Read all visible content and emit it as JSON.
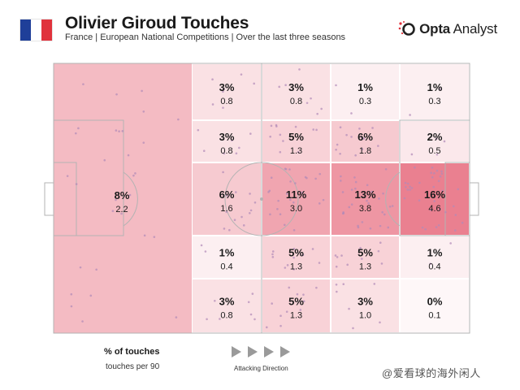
{
  "header": {
    "title": "Olivier Giroud Touches",
    "subtitle": "France | European National Competitions | Over the last three seasons",
    "flag_colors": [
      "#1f3f99",
      "#ffffff",
      "#e0323c"
    ],
    "brand_bold": "Opta",
    "brand_rest": " Analyst",
    "brand_icon": "opta-logo-icon"
  },
  "legend": {
    "main_label": "% of touches",
    "sub_label": "touches per 90",
    "direction_label": "Attacking Direction",
    "direction_icon": "play-arrow-icon"
  },
  "watermark": "@爱看球的海外闲人",
  "colors": {
    "pitch_line": "#b3b3b3",
    "heat_base": "#e45a6e",
    "dot": "#b08ab8"
  },
  "chart_data": {
    "type": "heatmap",
    "x_direction": "left-to-right attacking",
    "zones": [
      {
        "zone": "defensive-third",
        "pct": "8%",
        "per90": "2.2",
        "share": 8
      },
      {
        "zone": "r1c1",
        "pct": "3%",
        "per90": "0.8",
        "share": 3
      },
      {
        "zone": "r1c2",
        "pct": "3%",
        "per90": "0.8",
        "share": 3
      },
      {
        "zone": "r1c3",
        "pct": "1%",
        "per90": "0.3",
        "share": 1
      },
      {
        "zone": "r1c4",
        "pct": "1%",
        "per90": "0.3",
        "share": 1
      },
      {
        "zone": "r2c1",
        "pct": "3%",
        "per90": "0.8",
        "share": 3
      },
      {
        "zone": "r2c2",
        "pct": "5%",
        "per90": "1.3",
        "share": 5
      },
      {
        "zone": "r2c3",
        "pct": "6%",
        "per90": "1.8",
        "share": 6
      },
      {
        "zone": "r2c4",
        "pct": "2%",
        "per90": "0.5",
        "share": 2
      },
      {
        "zone": "r3c1",
        "pct": "6%",
        "per90": "1.6",
        "share": 6
      },
      {
        "zone": "r3c2",
        "pct": "11%",
        "per90": "3.0",
        "share": 11
      },
      {
        "zone": "r3c3",
        "pct": "13%",
        "per90": "3.8",
        "share": 13
      },
      {
        "zone": "r3c4",
        "pct": "16%",
        "per90": "4.6",
        "share": 16
      },
      {
        "zone": "r4c1",
        "pct": "1%",
        "per90": "0.4",
        "share": 1
      },
      {
        "zone": "r4c2",
        "pct": "5%",
        "per90": "1.3",
        "share": 5
      },
      {
        "zone": "r4c3",
        "pct": "5%",
        "per90": "1.3",
        "share": 5
      },
      {
        "zone": "r4c4",
        "pct": "1%",
        "per90": "0.4",
        "share": 1
      },
      {
        "zone": "r5c1",
        "pct": "3%",
        "per90": "0.8",
        "share": 3
      },
      {
        "zone": "r5c2",
        "pct": "5%",
        "per90": "1.3",
        "share": 5
      },
      {
        "zone": "r5c3",
        "pct": "3%",
        "per90": "1.0",
        "share": 3
      },
      {
        "zone": "r5c4",
        "pct": "0%",
        "per90": "0.1",
        "share": 0
      }
    ]
  }
}
